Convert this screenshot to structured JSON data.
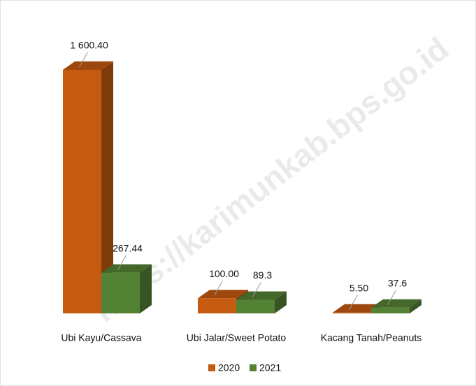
{
  "chart_data": {
    "type": "bar3d",
    "watermark": "https://karimunkab.bps.go.id",
    "categories": [
      "Ubi Kayu/Cassava",
      "Ubi Jalar/Sweet Potato",
      "Kacang Tanah/Peanuts"
    ],
    "series": [
      {
        "name": "2020",
        "color": "#c55a11",
        "values": [
          1600.4,
          100.0,
          5.5
        ],
        "value_labels": [
          "1 600.40",
          "100.00",
          "5.50"
        ]
      },
      {
        "name": "2021",
        "color": "#548235",
        "values": [
          267.44,
          89.3,
          37.6
        ],
        "value_labels": [
          "267.44",
          "89.3",
          "37.6"
        ]
      }
    ]
  }
}
